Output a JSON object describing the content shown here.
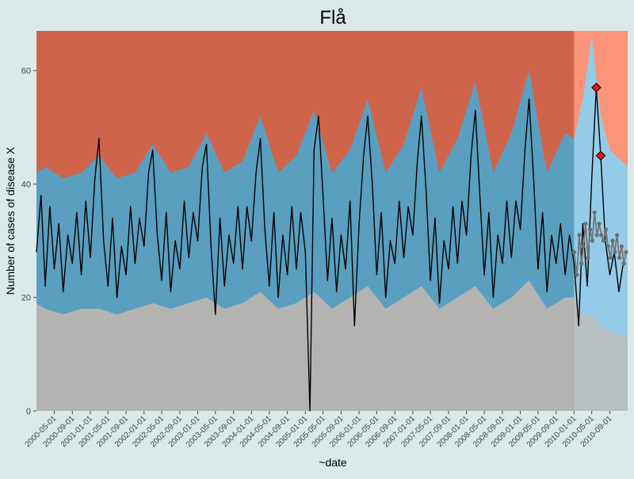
{
  "chart_data": {
    "type": "line",
    "title": "Flå",
    "xlabel": "~date",
    "ylabel": "Number of cases of disease X",
    "ylim": [
      0,
      67
    ],
    "yticks": [
      0,
      20,
      40,
      60
    ],
    "grid": false,
    "x_tick_labels": [
      "2000-05-01",
      "2000-09-01",
      "2001-01-01",
      "2001-05-01",
      "2001-09-01",
      "2002-01-01",
      "2002-05-01",
      "2002-09-01",
      "2003-01-01",
      "2003-05-01",
      "2003-09-01",
      "2004-01-01",
      "2004-05-01",
      "2004-09-01",
      "2005-01-01",
      "2005-05-01",
      "2005-09-01",
      "2006-01-01",
      "2006-05-01",
      "2006-09-01",
      "2007-01-01",
      "2007-05-01",
      "2007-09-01",
      "2008-01-01",
      "2008-05-01",
      "2008-09-01",
      "2009-01-01",
      "2009-05-01",
      "2009-09-01",
      "2010-01-01",
      "2010-05-01",
      "2010-09-01"
    ],
    "xlim": [
      "2000-01-01",
      "2010-12-31"
    ],
    "forecast_start": "2010-01-01",
    "band_colors": {
      "baseline": "#b3b4b2",
      "normal": "#5a9fc0",
      "high": "#d0644b",
      "baseline_forecast": "#b7c0c3",
      "normal_forecast": "#94cce8",
      "high_forecast": "#fb9478"
    },
    "band_limits": [
      {
        "date": "2000-01-01",
        "lower": 19,
        "upper": 42
      },
      {
        "date": "2000-03-01",
        "lower": 18,
        "upper": 43
      },
      {
        "date": "2000-07-01",
        "lower": 17,
        "upper": 41
      },
      {
        "date": "2000-11-01",
        "lower": 18,
        "upper": 42
      },
      {
        "date": "2001-03-01",
        "lower": 18,
        "upper": 45
      },
      {
        "date": "2001-07-01",
        "lower": 17,
        "upper": 41
      },
      {
        "date": "2001-11-01",
        "lower": 18,
        "upper": 42
      },
      {
        "date": "2002-03-01",
        "lower": 19,
        "upper": 47
      },
      {
        "date": "2002-07-01",
        "lower": 18,
        "upper": 42
      },
      {
        "date": "2002-11-01",
        "lower": 19,
        "upper": 43
      },
      {
        "date": "2003-03-01",
        "lower": 20,
        "upper": 49
      },
      {
        "date": "2003-07-01",
        "lower": 18,
        "upper": 42
      },
      {
        "date": "2003-11-01",
        "lower": 19,
        "upper": 44
      },
      {
        "date": "2004-03-01",
        "lower": 21,
        "upper": 52
      },
      {
        "date": "2004-07-01",
        "lower": 18,
        "upper": 42
      },
      {
        "date": "2004-11-01",
        "lower": 19,
        "upper": 45
      },
      {
        "date": "2005-03-01",
        "lower": 21,
        "upper": 53
      },
      {
        "date": "2005-07-01",
        "lower": 18,
        "upper": 42
      },
      {
        "date": "2005-11-01",
        "lower": 20,
        "upper": 46
      },
      {
        "date": "2006-03-01",
        "lower": 22,
        "upper": 55
      },
      {
        "date": "2006-07-01",
        "lower": 18,
        "upper": 42
      },
      {
        "date": "2006-11-01",
        "lower": 20,
        "upper": 47
      },
      {
        "date": "2007-03-01",
        "lower": 22,
        "upper": 57
      },
      {
        "date": "2007-07-01",
        "lower": 18,
        "upper": 42
      },
      {
        "date": "2007-11-01",
        "lower": 20,
        "upper": 48
      },
      {
        "date": "2008-03-01",
        "lower": 22,
        "upper": 58
      },
      {
        "date": "2008-07-01",
        "lower": 18,
        "upper": 42
      },
      {
        "date": "2008-11-01",
        "lower": 20,
        "upper": 49
      },
      {
        "date": "2009-03-01",
        "lower": 23,
        "upper": 60
      },
      {
        "date": "2009-07-01",
        "lower": 18,
        "upper": 42
      },
      {
        "date": "2009-11-01",
        "lower": 20,
        "upper": 49
      },
      {
        "date": "2010-01-01",
        "lower": 20,
        "upper": 48
      },
      {
        "date": "2010-03-01",
        "lower": 17,
        "upper": 55
      },
      {
        "date": "2010-05-01",
        "lower": 17,
        "upper": 66
      },
      {
        "date": "2010-07-01",
        "lower": 15,
        "upper": 52
      },
      {
        "date": "2010-09-01",
        "lower": 14,
        "upper": 46
      },
      {
        "date": "2010-12-31",
        "lower": 13,
        "upper": 43
      }
    ],
    "series": [
      {
        "role": "observed",
        "color": "#000000",
        "points": [
          {
            "date": "2000-01-01",
            "value": 28
          },
          {
            "date": "2000-02-01",
            "value": 38
          },
          {
            "date": "2000-03-01",
            "value": 22
          },
          {
            "date": "2000-04-01",
            "value": 36
          },
          {
            "date": "2000-05-01",
            "value": 25
          },
          {
            "date": "2000-06-01",
            "value": 33
          },
          {
            "date": "2000-07-01",
            "value": 21
          },
          {
            "date": "2000-08-01",
            "value": 31
          },
          {
            "date": "2000-09-01",
            "value": 26
          },
          {
            "date": "2000-10-01",
            "value": 35
          },
          {
            "date": "2000-11-01",
            "value": 24
          },
          {
            "date": "2000-12-01",
            "value": 37
          },
          {
            "date": "2001-01-01",
            "value": 27
          },
          {
            "date": "2001-02-01",
            "value": 41
          },
          {
            "date": "2001-03-01",
            "value": 48
          },
          {
            "date": "2001-04-01",
            "value": 30
          },
          {
            "date": "2001-05-01",
            "value": 22
          },
          {
            "date": "2001-06-01",
            "value": 34
          },
          {
            "date": "2001-07-01",
            "value": 20
          },
          {
            "date": "2001-08-01",
            "value": 29
          },
          {
            "date": "2001-09-01",
            "value": 24
          },
          {
            "date": "2001-10-01",
            "value": 36
          },
          {
            "date": "2001-11-01",
            "value": 26
          },
          {
            "date": "2001-12-01",
            "value": 34
          },
          {
            "date": "2002-01-01",
            "value": 29
          },
          {
            "date": "2002-02-01",
            "value": 42
          },
          {
            "date": "2002-03-01",
            "value": 46
          },
          {
            "date": "2002-04-01",
            "value": 31
          },
          {
            "date": "2002-05-01",
            "value": 23
          },
          {
            "date": "2002-06-01",
            "value": 35
          },
          {
            "date": "2002-07-01",
            "value": 21
          },
          {
            "date": "2002-08-01",
            "value": 30
          },
          {
            "date": "2002-09-01",
            "value": 25
          },
          {
            "date": "2002-10-01",
            "value": 37
          },
          {
            "date": "2002-11-01",
            "value": 27
          },
          {
            "date": "2002-12-01",
            "value": 35
          },
          {
            "date": "2003-01-01",
            "value": 30
          },
          {
            "date": "2003-02-01",
            "value": 43
          },
          {
            "date": "2003-03-01",
            "value": 47
          },
          {
            "date": "2003-04-01",
            "value": 29
          },
          {
            "date": "2003-05-01",
            "value": 17
          },
          {
            "date": "2003-06-01",
            "value": 34
          },
          {
            "date": "2003-07-01",
            "value": 22
          },
          {
            "date": "2003-08-01",
            "value": 31
          },
          {
            "date": "2003-09-01",
            "value": 26
          },
          {
            "date": "2003-10-01",
            "value": 36
          },
          {
            "date": "2003-11-01",
            "value": 25
          },
          {
            "date": "2003-12-01",
            "value": 36
          },
          {
            "date": "2004-01-01",
            "value": 30
          },
          {
            "date": "2004-02-01",
            "value": 42
          },
          {
            "date": "2004-03-01",
            "value": 48
          },
          {
            "date": "2004-04-01",
            "value": 32
          },
          {
            "date": "2004-05-01",
            "value": 22
          },
          {
            "date": "2004-06-01",
            "value": 35
          },
          {
            "date": "2004-07-01",
            "value": 20
          },
          {
            "date": "2004-08-01",
            "value": 31
          },
          {
            "date": "2004-09-01",
            "value": 24
          },
          {
            "date": "2004-10-01",
            "value": 36
          },
          {
            "date": "2004-11-01",
            "value": 25
          },
          {
            "date": "2004-12-01",
            "value": 35
          },
          {
            "date": "2005-01-01",
            "value": 28
          },
          {
            "date": "2005-02-01",
            "value": 0
          },
          {
            "date": "2005-03-01",
            "value": 46
          },
          {
            "date": "2005-04-01",
            "value": 52
          },
          {
            "date": "2005-05-01",
            "value": 38
          },
          {
            "date": "2005-06-01",
            "value": 23
          },
          {
            "date": "2005-07-01",
            "value": 34
          },
          {
            "date": "2005-08-01",
            "value": 21
          },
          {
            "date": "2005-09-01",
            "value": 31
          },
          {
            "date": "2005-10-01",
            "value": 25
          },
          {
            "date": "2005-11-01",
            "value": 37
          },
          {
            "date": "2005-12-01",
            "value": 15
          },
          {
            "date": "2006-01-01",
            "value": 33
          },
          {
            "date": "2006-02-01",
            "value": 45
          },
          {
            "date": "2006-03-01",
            "value": 52
          },
          {
            "date": "2006-04-01",
            "value": 40
          },
          {
            "date": "2006-05-01",
            "value": 24
          },
          {
            "date": "2006-06-01",
            "value": 35
          },
          {
            "date": "2006-07-01",
            "value": 20
          },
          {
            "date": "2006-08-01",
            "value": 30
          },
          {
            "date": "2006-09-01",
            "value": 26
          },
          {
            "date": "2006-10-01",
            "value": 37
          },
          {
            "date": "2006-11-01",
            "value": 27
          },
          {
            "date": "2006-12-01",
            "value": 36
          },
          {
            "date": "2007-01-01",
            "value": 31
          },
          {
            "date": "2007-02-01",
            "value": 44
          },
          {
            "date": "2007-03-01",
            "value": 52
          },
          {
            "date": "2007-04-01",
            "value": 39
          },
          {
            "date": "2007-05-01",
            "value": 23
          },
          {
            "date": "2007-06-01",
            "value": 34
          },
          {
            "date": "2007-07-01",
            "value": 19
          },
          {
            "date": "2007-08-01",
            "value": 30
          },
          {
            "date": "2007-09-01",
            "value": 25
          },
          {
            "date": "2007-10-01",
            "value": 36
          },
          {
            "date": "2007-11-01",
            "value": 26
          },
          {
            "date": "2007-12-01",
            "value": 37
          },
          {
            "date": "2008-01-01",
            "value": 31
          },
          {
            "date": "2008-02-01",
            "value": 45
          },
          {
            "date": "2008-03-01",
            "value": 53
          },
          {
            "date": "2008-04-01",
            "value": 38
          },
          {
            "date": "2008-05-01",
            "value": 24
          },
          {
            "date": "2008-06-01",
            "value": 35
          },
          {
            "date": "2008-07-01",
            "value": 20
          },
          {
            "date": "2008-08-01",
            "value": 31
          },
          {
            "date": "2008-09-01",
            "value": 26
          },
          {
            "date": "2008-10-01",
            "value": 37
          },
          {
            "date": "2008-11-01",
            "value": 27
          },
          {
            "date": "2008-12-01",
            "value": 37
          },
          {
            "date": "2009-01-01",
            "value": 32
          },
          {
            "date": "2009-02-01",
            "value": 46
          },
          {
            "date": "2009-03-01",
            "value": 55
          },
          {
            "date": "2009-04-01",
            "value": 41
          },
          {
            "date": "2009-05-01",
            "value": 25
          },
          {
            "date": "2009-06-01",
            "value": 35
          },
          {
            "date": "2009-07-01",
            "value": 21
          },
          {
            "date": "2009-08-01",
            "value": 31
          },
          {
            "date": "2009-09-01",
            "value": 26
          },
          {
            "date": "2009-10-01",
            "value": 33
          },
          {
            "date": "2009-11-01",
            "value": 24
          },
          {
            "date": "2009-12-01",
            "value": 31
          },
          {
            "date": "2010-01-01",
            "value": 26
          },
          {
            "date": "2010-02-01",
            "value": 15
          },
          {
            "date": "2010-03-01",
            "value": 33
          },
          {
            "date": "2010-04-01",
            "value": 22
          },
          {
            "date": "2010-05-01",
            "value": 41
          },
          {
            "date": "2010-06-01",
            "value": 57
          },
          {
            "date": "2010-07-01",
            "value": 45
          },
          {
            "date": "2010-08-01",
            "value": 30
          },
          {
            "date": "2010-09-01",
            "value": 24
          },
          {
            "date": "2010-10-01",
            "value": 28
          },
          {
            "date": "2010-11-01",
            "value": 21
          },
          {
            "date": "2010-12-01",
            "value": 26
          }
        ]
      },
      {
        "role": "forecast",
        "color": "#6f6f6f",
        "points": [
          {
            "date": "2010-01-01",
            "value": 28
          },
          {
            "date": "2010-01-20",
            "value": 24
          },
          {
            "date": "2010-02-05",
            "value": 31
          },
          {
            "date": "2010-02-20",
            "value": 26
          },
          {
            "date": "2010-03-05",
            "value": 29
          },
          {
            "date": "2010-03-20",
            "value": 33
          },
          {
            "date": "2010-04-05",
            "value": 27
          },
          {
            "date": "2010-04-20",
            "value": 32
          },
          {
            "date": "2010-05-05",
            "value": 30
          },
          {
            "date": "2010-05-20",
            "value": 35
          },
          {
            "date": "2010-06-05",
            "value": 31
          },
          {
            "date": "2010-06-20",
            "value": 33
          },
          {
            "date": "2010-07-05",
            "value": 31
          },
          {
            "date": "2010-07-20",
            "value": 30
          },
          {
            "date": "2010-08-05",
            "value": 32
          },
          {
            "date": "2010-08-20",
            "value": 29
          },
          {
            "date": "2010-09-05",
            "value": 27
          },
          {
            "date": "2010-09-20",
            "value": 30
          },
          {
            "date": "2010-10-05",
            "value": 28
          },
          {
            "date": "2010-10-20",
            "value": 31
          },
          {
            "date": "2010-11-05",
            "value": 27
          },
          {
            "date": "2010-11-20",
            "value": 29
          },
          {
            "date": "2010-12-05",
            "value": 26
          },
          {
            "date": "2010-12-20",
            "value": 28
          }
        ]
      }
    ],
    "highlighted_points": [
      {
        "date": "2010-06-01",
        "value": 57,
        "color": "#e8141a"
      },
      {
        "date": "2010-07-01",
        "value": 45,
        "color": "#e8141a"
      }
    ]
  }
}
